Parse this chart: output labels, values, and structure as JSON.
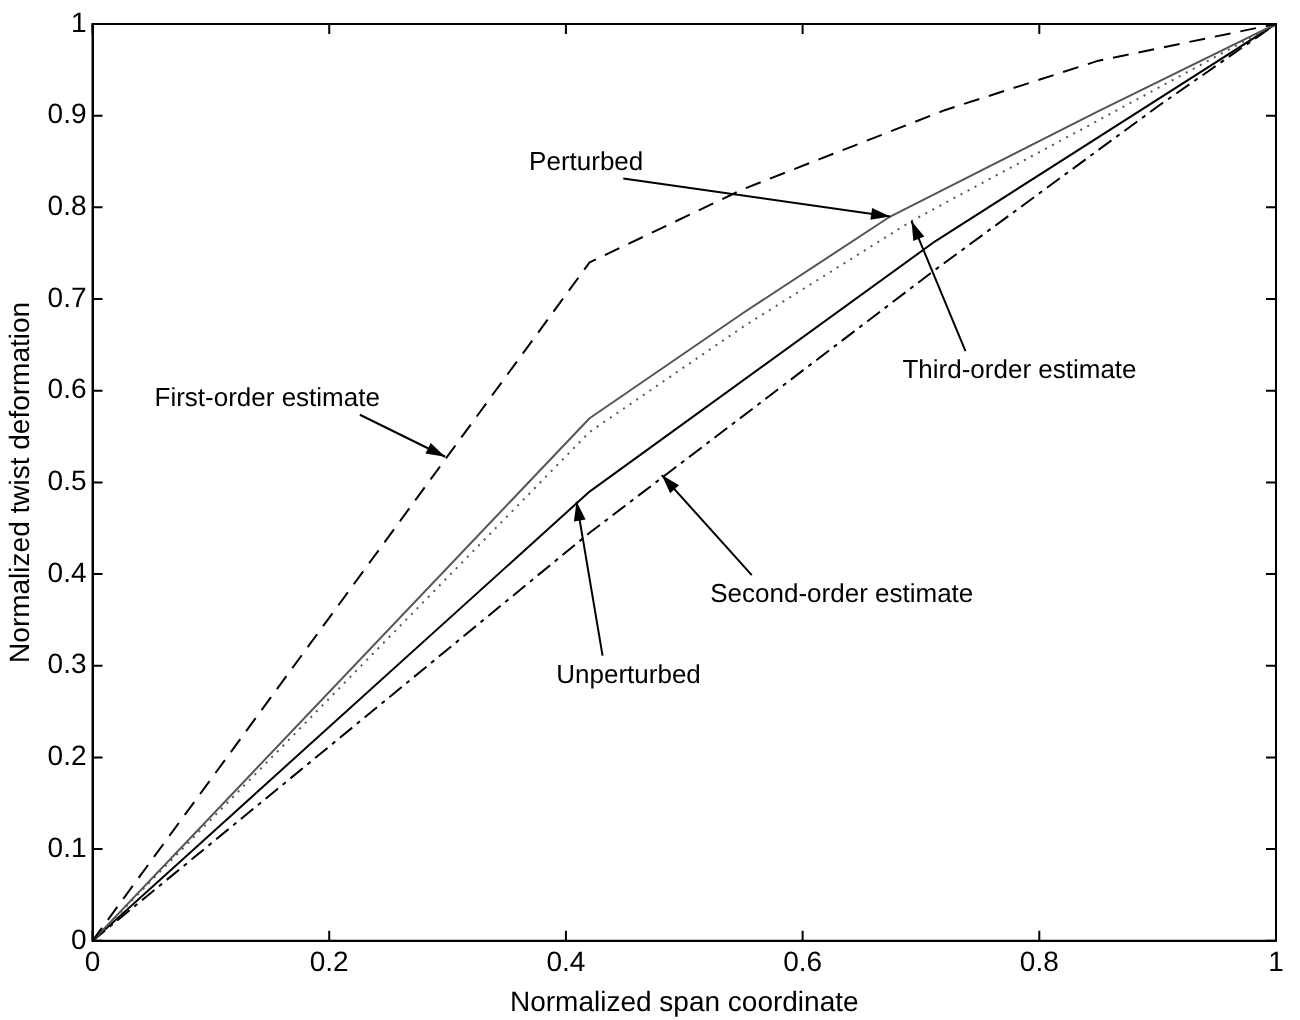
{
  "chart_data": {
    "type": "line",
    "xlabel": "Normalized span coordinate",
    "ylabel": "Normalized twist deformation",
    "xlim": [
      0,
      1
    ],
    "ylim": [
      0,
      1
    ],
    "xticks": [
      0,
      0.2,
      0.4,
      0.6,
      0.8,
      1
    ],
    "yticks": [
      0,
      0.1,
      0.2,
      0.3,
      0.4,
      0.5,
      0.6,
      0.7,
      0.8,
      0.9,
      1
    ],
    "grid": false,
    "legend": false,
    "marker": "none",
    "series": [
      {
        "color": "#000000",
        "line_style": "dashed",
        "x": [
          0,
          0.42,
          0.55,
          0.72,
          0.85,
          1
        ],
        "values": [
          0,
          0.74,
          0.82,
          0.906,
          0.96,
          1
        ]
      },
      {
        "color": "#555555",
        "line_style": "solid",
        "x": [
          0,
          0.42,
          0.55,
          0.674,
          0.85,
          1
        ],
        "values": [
          0,
          0.57,
          0.685,
          0.79,
          0.905,
          1
        ]
      },
      {
        "color": "#555555",
        "line_style": "dotted",
        "x": [
          0,
          0.42,
          0.55,
          0.692,
          0.85,
          1
        ],
        "values": [
          0,
          0.555,
          0.67,
          0.785,
          0.895,
          1
        ]
      },
      {
        "color": "#000000",
        "line_style": "solid",
        "x": [
          0,
          0.42,
          0.712,
          1
        ],
        "values": [
          0,
          0.49,
          0.763,
          1
        ]
      },
      {
        "color": "#000000",
        "line_style": "dashdot",
        "x": [
          0,
          0.42,
          0.71,
          0.9,
          1
        ],
        "values": [
          0,
          0.445,
          0.73,
          0.91,
          1
        ]
      }
    ],
    "annotations": [
      {
        "text": "Perturbed",
        "x": 0.674,
        "y": 0.79
      },
      {
        "text": "Third-order estimate",
        "x": 0.692,
        "y": 0.785
      },
      {
        "text": "First-order estimate",
        "x": 0.298,
        "y": 0.528
      },
      {
        "text": "Unperturbed",
        "x": 0.409,
        "y": 0.479
      },
      {
        "text": "Second-order estimate",
        "x": 0.481,
        "y": 0.508
      }
    ]
  }
}
